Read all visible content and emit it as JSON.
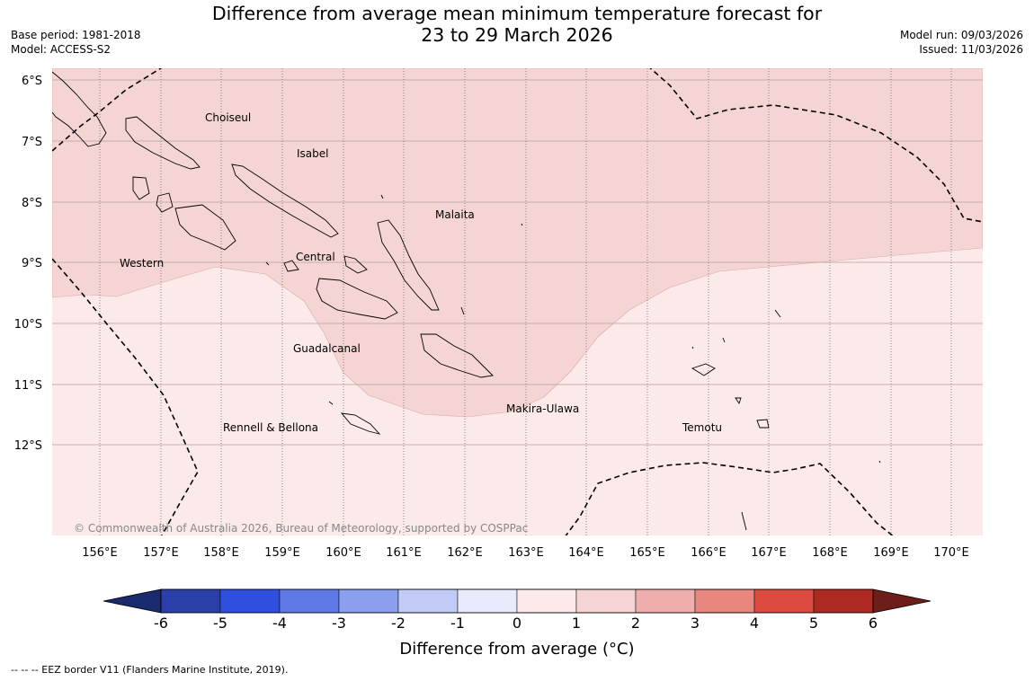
{
  "title": {
    "line1": "Difference from average mean minimum temperature forecast for",
    "line2": "23 to 29 March 2026"
  },
  "meta_left": {
    "base_period": "Base period: 1981-2018",
    "model": "Model: ACCESS-S2"
  },
  "meta_right": {
    "model_run": "Model run: 09/03/2026",
    "issued": "Issued: 11/03/2026"
  },
  "map": {
    "lat_labels": [
      "6°S",
      "7°S",
      "8°S",
      "9°S",
      "10°S",
      "11°S",
      "12°S"
    ],
    "lon_labels": [
      "156°E",
      "157°E",
      "158°E",
      "159°E",
      "160°E",
      "161°E",
      "162°E",
      "163°E",
      "164°E",
      "165°E",
      "166°E",
      "167°E",
      "168°E",
      "169°E",
      "170°E"
    ],
    "regions": [
      "Choiseul",
      "Isabel",
      "Malaita",
      "Western",
      "Central",
      "Guadalcanal",
      "Makira-Ulawa",
      "Rennell & Bellona",
      "Temotu"
    ],
    "copyright": "© Commonwealth of Australia 2026, Bureau of Meteorology, supported by COSPPac",
    "anomaly_zones": [
      {
        "name": "1 to 2 °C",
        "color": "#f4d5d3"
      },
      {
        "name": "0 to 1 °C",
        "color": "#fbeae9"
      }
    ]
  },
  "colorbar": {
    "title": "Difference from average (°C)",
    "ticks": [
      "-6",
      "-5",
      "-4",
      "-3",
      "-2",
      "-1",
      "0",
      "1",
      "2",
      "3",
      "4",
      "5",
      "6"
    ],
    "colors": [
      "#2b3fa9",
      "#2f4fdf",
      "#5e78e6",
      "#8a9fee",
      "#c2cbf5",
      "#e8ebfb",
      "#fbeae9",
      "#f4d5d3",
      "#efaeab",
      "#e7877f",
      "#dc4b3f",
      "#ad2a23"
    ],
    "extend_low_color": "#1a2a6e",
    "extend_high_color": "#6e1e1a"
  },
  "footnote": "--  --  -- EEZ border V11 (Flanders Marine Institute, 2019)."
}
